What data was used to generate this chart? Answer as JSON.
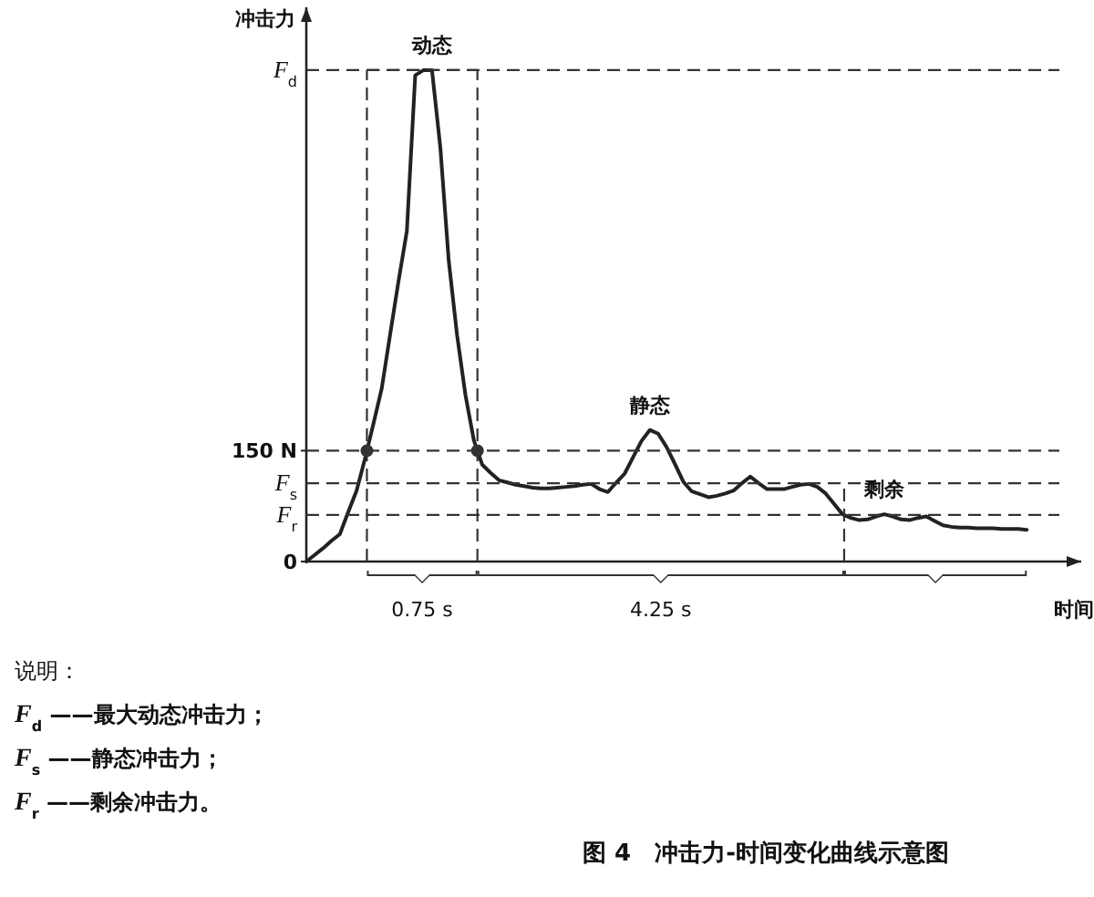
{
  "chart_data": {
    "type": "line",
    "title": "图 4　冲击力-时间变化曲线示意图",
    "xlabel": "时间",
    "ylabel": "冲击力",
    "ylim": [
      0,
      750
    ],
    "yticks": [
      {
        "value": 0,
        "label": "0"
      },
      {
        "value": 150,
        "label": "150 N"
      }
    ],
    "categories": [
      null,
      null,
      null,
      null,
      null,
      null,
      null,
      null,
      null,
      null,
      null,
      null,
      null,
      null,
      null,
      null,
      null,
      null,
      null,
      null,
      null,
      null,
      null,
      null,
      null,
      null,
      null,
      null,
      null,
      null,
      null,
      null,
      null,
      null,
      null,
      null,
      null,
      null,
      null,
      null,
      null,
      null,
      null,
      null,
      null,
      null,
      null,
      null,
      null,
      null,
      null,
      null,
      null,
      null,
      null,
      null,
      null,
      null,
      null,
      null,
      null,
      null,
      null,
      null,
      null,
      null,
      null,
      null,
      null,
      null,
      null,
      null,
      null,
      null,
      null,
      null,
      null,
      null,
      null,
      null,
      null,
      null,
      null,
      null,
      null,
      null,
      null
    ],
    "series": [
      {
        "color": "#222222",
        "values": [
          0,
          9,
          18,
          28,
          37,
          67,
          96,
          139,
          186,
          234,
          307,
          379,
          447,
          658,
          665,
          665,
          560,
          407,
          306,
          225,
          164,
          131,
          120,
          110,
          107,
          104,
          102,
          100,
          99,
          99,
          100,
          101,
          102,
          104,
          105,
          98,
          94,
          107,
          119,
          141,
          163,
          178,
          173,
          155,
          132,
          108,
          95,
          91,
          87,
          89,
          92,
          96,
          106,
          115,
          106,
          98,
          98,
          98,
          101,
          104,
          105,
          101,
          92,
          78,
          64,
          59,
          56,
          57,
          61,
          64,
          61,
          57,
          56,
          59,
          61,
          55,
          49,
          47,
          46,
          46,
          45,
          45,
          45,
          44,
          44,
          44,
          43
        ]
      }
    ],
    "ref_lines": [
      {
        "axis": "y",
        "value": 665,
        "label": "*F*$_{d}$",
        "line_style": "dashed"
      },
      {
        "axis": "y",
        "value": 150,
        "line_style": "dashed"
      },
      {
        "axis": "y",
        "value": 106,
        "label": "*F*$_{s}$",
        "line_style": "dashed"
      },
      {
        "axis": "y",
        "value": 63,
        "label": "*F*$_{r}$",
        "line_style": "dashed"
      }
    ],
    "annotations": [
      {
        "text": "动态",
        "y": 665
      },
      {
        "text": "静态",
        "y": 178
      },
      {
        "text": "剩余",
        "y": 64
      },
      "0.75 s",
      "4.25 s",
      "说明：",
      "*F*$_{d}$ ——最大动态冲击力；",
      "*F*$_{s}$ ——静态冲击力；",
      "*F*$_{r}$ ——剩余冲击力。"
    ]
  }
}
